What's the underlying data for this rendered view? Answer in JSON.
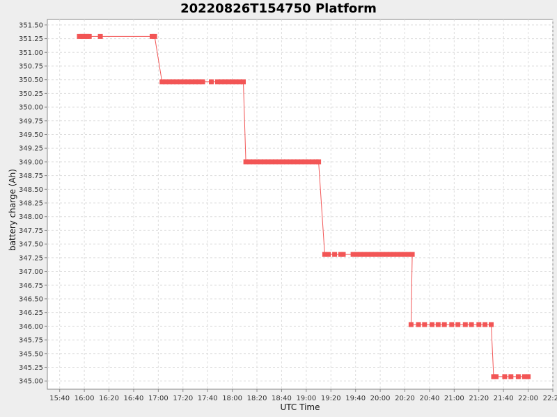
{
  "chart_data": {
    "type": "line",
    "title": "20220826T154750 Platform",
    "xlabel": "UTC Time",
    "ylabel": "battery charge (Ah)",
    "xlim": [
      "15:30",
      "22:20"
    ],
    "ylim": [
      344.85,
      351.6
    ],
    "x_ticks": [
      "15:40",
      "16:00",
      "16:20",
      "16:40",
      "17:00",
      "17:20",
      "17:40",
      "18:00",
      "18:20",
      "18:40",
      "19:00",
      "19:20",
      "19:40",
      "20:00",
      "20:20",
      "20:40",
      "21:00",
      "21:20",
      "21:40",
      "22:00",
      "22:20"
    ],
    "y_ticks": [
      "345.00",
      "345.25",
      "345.50",
      "345.75",
      "346.00",
      "346.25",
      "346.50",
      "346.75",
      "347.00",
      "347.25",
      "347.50",
      "347.75",
      "348.00",
      "348.25",
      "348.50",
      "348.75",
      "349.00",
      "349.25",
      "349.50",
      "349.75",
      "350.00",
      "350.25",
      "350.50",
      "350.75",
      "351.00",
      "351.25",
      "351.50"
    ],
    "grid": true,
    "series": [
      {
        "color": "#f25555",
        "markers": "square",
        "points": [
          {
            "x": "15:56",
            "y": 351.29
          },
          {
            "x": "15:58",
            "y": 351.29
          },
          {
            "x": "16:00",
            "y": 351.29
          },
          {
            "x": "16:02",
            "y": 351.29
          },
          {
            "x": "16:04",
            "y": 351.29
          },
          {
            "x": "16:13",
            "y": 351.29
          },
          {
            "x": "16:55",
            "y": 351.29
          },
          {
            "x": "16:57",
            "y": 351.29
          },
          {
            "x": "17:03",
            "y": 350.46
          },
          {
            "x": "17:06",
            "y": 350.46
          },
          {
            "x": "17:09",
            "y": 350.46
          },
          {
            "x": "17:12",
            "y": 350.46
          },
          {
            "x": "17:15",
            "y": 350.46
          },
          {
            "x": "17:18",
            "y": 350.46
          },
          {
            "x": "17:21",
            "y": 350.46
          },
          {
            "x": "17:24",
            "y": 350.46
          },
          {
            "x": "17:27",
            "y": 350.46
          },
          {
            "x": "17:30",
            "y": 350.46
          },
          {
            "x": "17:33",
            "y": 350.46
          },
          {
            "x": "17:36",
            "y": 350.46
          },
          {
            "x": "17:43",
            "y": 350.46
          },
          {
            "x": "17:48",
            "y": 350.46
          },
          {
            "x": "17:51",
            "y": 350.46
          },
          {
            "x": "17:54",
            "y": 350.46
          },
          {
            "x": "17:57",
            "y": 350.46
          },
          {
            "x": "18:00",
            "y": 350.46
          },
          {
            "x": "18:03",
            "y": 350.46
          },
          {
            "x": "18:06",
            "y": 350.46
          },
          {
            "x": "18:09",
            "y": 350.46
          },
          {
            "x": "18:11",
            "y": 349.0
          },
          {
            "x": "18:14",
            "y": 349.0
          },
          {
            "x": "18:17",
            "y": 349.0
          },
          {
            "x": "18:20",
            "y": 349.0
          },
          {
            "x": "18:23",
            "y": 349.0
          },
          {
            "x": "18:26",
            "y": 349.0
          },
          {
            "x": "18:29",
            "y": 349.0
          },
          {
            "x": "18:32",
            "y": 349.0
          },
          {
            "x": "18:35",
            "y": 349.0
          },
          {
            "x": "18:38",
            "y": 349.0
          },
          {
            "x": "18:41",
            "y": 349.0
          },
          {
            "x": "18:44",
            "y": 349.0
          },
          {
            "x": "18:47",
            "y": 349.0
          },
          {
            "x": "18:50",
            "y": 349.0
          },
          {
            "x": "18:53",
            "y": 349.0
          },
          {
            "x": "18:56",
            "y": 349.0
          },
          {
            "x": "18:59",
            "y": 349.0
          },
          {
            "x": "19:02",
            "y": 349.0
          },
          {
            "x": "19:05",
            "y": 349.0
          },
          {
            "x": "19:08",
            "y": 349.0
          },
          {
            "x": "19:10",
            "y": 349.0
          },
          {
            "x": "19:15",
            "y": 347.31
          },
          {
            "x": "19:18",
            "y": 347.31
          },
          {
            "x": "19:23",
            "y": 347.31
          },
          {
            "x": "19:28",
            "y": 347.31
          },
          {
            "x": "19:30",
            "y": 347.31
          },
          {
            "x": "19:38",
            "y": 347.31
          },
          {
            "x": "19:41",
            "y": 347.31
          },
          {
            "x": "19:44",
            "y": 347.31
          },
          {
            "x": "19:47",
            "y": 347.31
          },
          {
            "x": "19:50",
            "y": 347.31
          },
          {
            "x": "19:53",
            "y": 347.31
          },
          {
            "x": "19:56",
            "y": 347.31
          },
          {
            "x": "19:59",
            "y": 347.31
          },
          {
            "x": "20:02",
            "y": 347.31
          },
          {
            "x": "20:05",
            "y": 347.31
          },
          {
            "x": "20:08",
            "y": 347.31
          },
          {
            "x": "20:11",
            "y": 347.31
          },
          {
            "x": "20:14",
            "y": 347.31
          },
          {
            "x": "20:17",
            "y": 347.31
          },
          {
            "x": "20:20",
            "y": 347.31
          },
          {
            "x": "20:23",
            "y": 347.31
          },
          {
            "x": "20:26",
            "y": 347.31
          },
          {
            "x": "20:25",
            "y": 346.03
          },
          {
            "x": "20:31",
            "y": 346.03
          },
          {
            "x": "20:36",
            "y": 346.03
          },
          {
            "x": "20:42",
            "y": 346.03
          },
          {
            "x": "20:47",
            "y": 346.03
          },
          {
            "x": "20:52",
            "y": 346.03
          },
          {
            "x": "20:58",
            "y": 346.03
          },
          {
            "x": "21:03",
            "y": 346.03
          },
          {
            "x": "21:09",
            "y": 346.03
          },
          {
            "x": "21:14",
            "y": 346.03
          },
          {
            "x": "21:20",
            "y": 346.03
          },
          {
            "x": "21:25",
            "y": 346.03
          },
          {
            "x": "21:30",
            "y": 346.03
          },
          {
            "x": "21:32",
            "y": 345.08
          },
          {
            "x": "21:34",
            "y": 345.08
          },
          {
            "x": "21:41",
            "y": 345.08
          },
          {
            "x": "21:46",
            "y": 345.08
          },
          {
            "x": "21:52",
            "y": 345.08
          },
          {
            "x": "21:57",
            "y": 345.08
          },
          {
            "x": "22:00",
            "y": 345.08
          }
        ]
      }
    ]
  }
}
